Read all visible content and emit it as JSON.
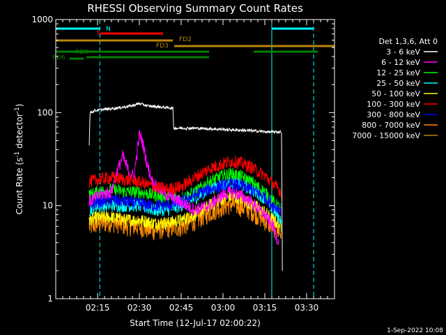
{
  "chart_data": {
    "type": "line",
    "title": "RHESSI Observing Summary Count Rates",
    "xlabel": "Start Time (12-Jul-17 02:00:22)",
    "ylabel": "Count Rate (s⁻¹ detector⁻¹)",
    "ylabel_main": "Count Rate (s",
    "ylabel_sup1": "-1",
    "ylabel_mid": " detector",
    "ylabel_sup2": "-1",
    "ylabel_end": ")",
    "yscale": "log",
    "ylim": [
      1,
      1000
    ],
    "xlim_minutes": [
      0,
      100
    ],
    "y_ticks": [
      {
        "value": 1,
        "label": "1"
      },
      {
        "value": 10,
        "label": "10"
      },
      {
        "value": 100,
        "label": "100"
      },
      {
        "value": 1000,
        "label": "1000"
      }
    ],
    "x_ticks": [
      {
        "minutes": 15,
        "label": "02:15"
      },
      {
        "minutes": 30,
        "label": "02:30"
      },
      {
        "minutes": 45,
        "label": "02:45"
      },
      {
        "minutes": 60,
        "label": "03:00"
      },
      {
        "minutes": 75,
        "label": "03:15"
      },
      {
        "minutes": 90,
        "label": "03:30"
      }
    ],
    "legend": {
      "header": "Det 1,3,6, Att 0",
      "position": "right",
      "entries": [
        {
          "label": "3 - 6 keV",
          "color": "#ffffff"
        },
        {
          "label": "6 - 12 keV",
          "color": "#ff00ff"
        },
        {
          "label": "12 - 25 keV",
          "color": "#00ff00"
        },
        {
          "label": "25 - 50 keV",
          "color": "#00ffff"
        },
        {
          "label": "50 - 100 keV",
          "color": "#ffff00"
        },
        {
          "label": "100 - 300 keV",
          "color": "#ff0000"
        },
        {
          "label": "300 - 800 keV",
          "color": "#0000ff"
        },
        {
          "label": "800 - 7000 keV",
          "color": "#ff8c00"
        },
        {
          "label": "7000 - 15000 keV",
          "color": "#b8860b"
        }
      ]
    },
    "series": [
      {
        "name": "3 - 6 keV",
        "color": "#ffffff",
        "points": [
          [
            12,
            44
          ],
          [
            12.3,
            100
          ],
          [
            14,
            105
          ],
          [
            17,
            108
          ],
          [
            22,
            112
          ],
          [
            27,
            118
          ],
          [
            30,
            125
          ],
          [
            33,
            118
          ],
          [
            40,
            113
          ],
          [
            42,
            112
          ],
          [
            42.3,
            68
          ],
          [
            50,
            68
          ],
          [
            60,
            66
          ],
          [
            70,
            64
          ],
          [
            76,
            62
          ],
          [
            78,
            62
          ],
          [
            81,
            62
          ],
          [
            81.3,
            2
          ]
        ]
      },
      {
        "name": "6 - 12 keV",
        "color": "#ff00ff",
        "points": [
          [
            12,
            11
          ],
          [
            16,
            13
          ],
          [
            20,
            14
          ],
          [
            22,
            23
          ],
          [
            24,
            34
          ],
          [
            26,
            24
          ],
          [
            28,
            20
          ],
          [
            30,
            58
          ],
          [
            31,
            50
          ],
          [
            33,
            26
          ],
          [
            35,
            17
          ],
          [
            40,
            13
          ],
          [
            50,
            9
          ],
          [
            55,
            10
          ],
          [
            60,
            13
          ],
          [
            63,
            14
          ],
          [
            66,
            13
          ],
          [
            70,
            11
          ],
          [
            75,
            8
          ],
          [
            78,
            6
          ],
          [
            80,
            4
          ]
        ]
      },
      {
        "name": "12 - 25 keV",
        "color": "#00ff00",
        "points": [
          [
            12,
            13
          ],
          [
            15,
            14
          ],
          [
            20,
            15
          ],
          [
            25,
            14
          ],
          [
            30,
            14
          ],
          [
            35,
            13
          ],
          [
            40,
            12
          ],
          [
            45,
            12
          ],
          [
            50,
            14
          ],
          [
            55,
            18
          ],
          [
            60,
            21
          ],
          [
            63,
            22
          ],
          [
            66,
            21
          ],
          [
            70,
            18
          ],
          [
            75,
            14
          ],
          [
            78,
            11
          ],
          [
            81,
            9
          ]
        ]
      },
      {
        "name": "25 - 50 keV",
        "color": "#00ffff",
        "points": [
          [
            12,
            9
          ],
          [
            15,
            10
          ],
          [
            20,
            10
          ],
          [
            25,
            10
          ],
          [
            30,
            10
          ],
          [
            35,
            9
          ],
          [
            40,
            9
          ],
          [
            45,
            10
          ],
          [
            50,
            12
          ],
          [
            55,
            15
          ],
          [
            60,
            17
          ],
          [
            63,
            18
          ],
          [
            66,
            17
          ],
          [
            70,
            15
          ],
          [
            75,
            12
          ],
          [
            78,
            9
          ],
          [
            81,
            7
          ]
        ]
      },
      {
        "name": "50 - 100 keV",
        "color": "#ffff00",
        "points": [
          [
            12,
            7
          ],
          [
            15,
            7.5
          ],
          [
            20,
            7.5
          ],
          [
            25,
            7
          ],
          [
            30,
            7
          ],
          [
            35,
            6.5
          ],
          [
            40,
            6.5
          ],
          [
            45,
            7
          ],
          [
            50,
            8
          ],
          [
            55,
            10
          ],
          [
            60,
            12
          ],
          [
            63,
            12.5
          ],
          [
            66,
            12
          ],
          [
            70,
            10.5
          ],
          [
            75,
            8.5
          ],
          [
            78,
            7
          ],
          [
            81,
            6
          ]
        ]
      },
      {
        "name": "100 - 300 keV",
        "color": "#ff0000",
        "points": [
          [
            12,
            18
          ],
          [
            15,
            19
          ],
          [
            20,
            20
          ],
          [
            25,
            19
          ],
          [
            30,
            18
          ],
          [
            35,
            16
          ],
          [
            40,
            15
          ],
          [
            45,
            16
          ],
          [
            50,
            20
          ],
          [
            55,
            25
          ],
          [
            60,
            28
          ],
          [
            63,
            30
          ],
          [
            66,
            29
          ],
          [
            70,
            26
          ],
          [
            75,
            21
          ],
          [
            78,
            17
          ],
          [
            81,
            14
          ]
        ]
      },
      {
        "name": "300 - 800 keV",
        "color": "#0000ff",
        "points": [
          [
            12,
            10
          ],
          [
            15,
            11
          ],
          [
            20,
            11.5
          ],
          [
            25,
            11
          ],
          [
            30,
            10.5
          ],
          [
            35,
            10
          ],
          [
            40,
            10
          ],
          [
            45,
            11
          ],
          [
            50,
            13
          ],
          [
            55,
            15
          ],
          [
            60,
            16.5
          ],
          [
            63,
            17
          ],
          [
            66,
            16.5
          ],
          [
            70,
            15
          ],
          [
            75,
            12.5
          ],
          [
            78,
            10
          ],
          [
            81,
            9
          ]
        ]
      },
      {
        "name": "800 - 7000 keV",
        "color": "#ff8c00",
        "points": [
          [
            12,
            6
          ],
          [
            15,
            6.5
          ],
          [
            20,
            6.8
          ],
          [
            25,
            6.2
          ],
          [
            30,
            6
          ],
          [
            35,
            5.5
          ],
          [
            40,
            5.8
          ],
          [
            45,
            6
          ],
          [
            50,
            7
          ],
          [
            55,
            8.5
          ],
          [
            60,
            10
          ],
          [
            63,
            10.5
          ],
          [
            66,
            10
          ],
          [
            70,
            9
          ],
          [
            75,
            7
          ],
          [
            78,
            6
          ],
          [
            81,
            5
          ]
        ]
      },
      {
        "name": "7000 - 15000 keV",
        "color": "#b8860b",
        "points": []
      }
    ],
    "flag_bars": [
      {
        "label": "N",
        "color": "#00ffff",
        "segments": [
          [
            0,
            15.8
          ],
          [
            77.5,
            92.5
          ]
        ]
      },
      {
        "label": "F",
        "color": "#ff0000",
        "segments": [
          [
            16,
            38.5
          ]
        ]
      },
      {
        "label": "FD2",
        "color": "#b8860b",
        "segments": [
          [
            0,
            42
          ]
        ]
      },
      {
        "label": "FD3",
        "color": "#b8860b",
        "segments": [
          [
            42.5,
            100
          ]
        ]
      },
      {
        "label": "RD0",
        "color": "#008000",
        "segments": [
          [
            0,
            55
          ],
          [
            11,
            55
          ],
          [
            71,
            94
          ]
        ]
      },
      {
        "label": "RD6",
        "color": "#008000",
        "segments": [
          [
            5,
            10
          ]
        ]
      }
    ],
    "vlines": [
      {
        "minutes": 0,
        "color": "#00ffff",
        "style": "solid"
      },
      {
        "minutes": 15.8,
        "color": "#00ffff",
        "style": "dashed"
      },
      {
        "minutes": 77.5,
        "color": "#00ffff",
        "style": "solid"
      },
      {
        "minutes": 92.5,
        "color": "#00ffff",
        "style": "dashed"
      }
    ],
    "timestamp": "1-Sep-2022 10:08"
  }
}
